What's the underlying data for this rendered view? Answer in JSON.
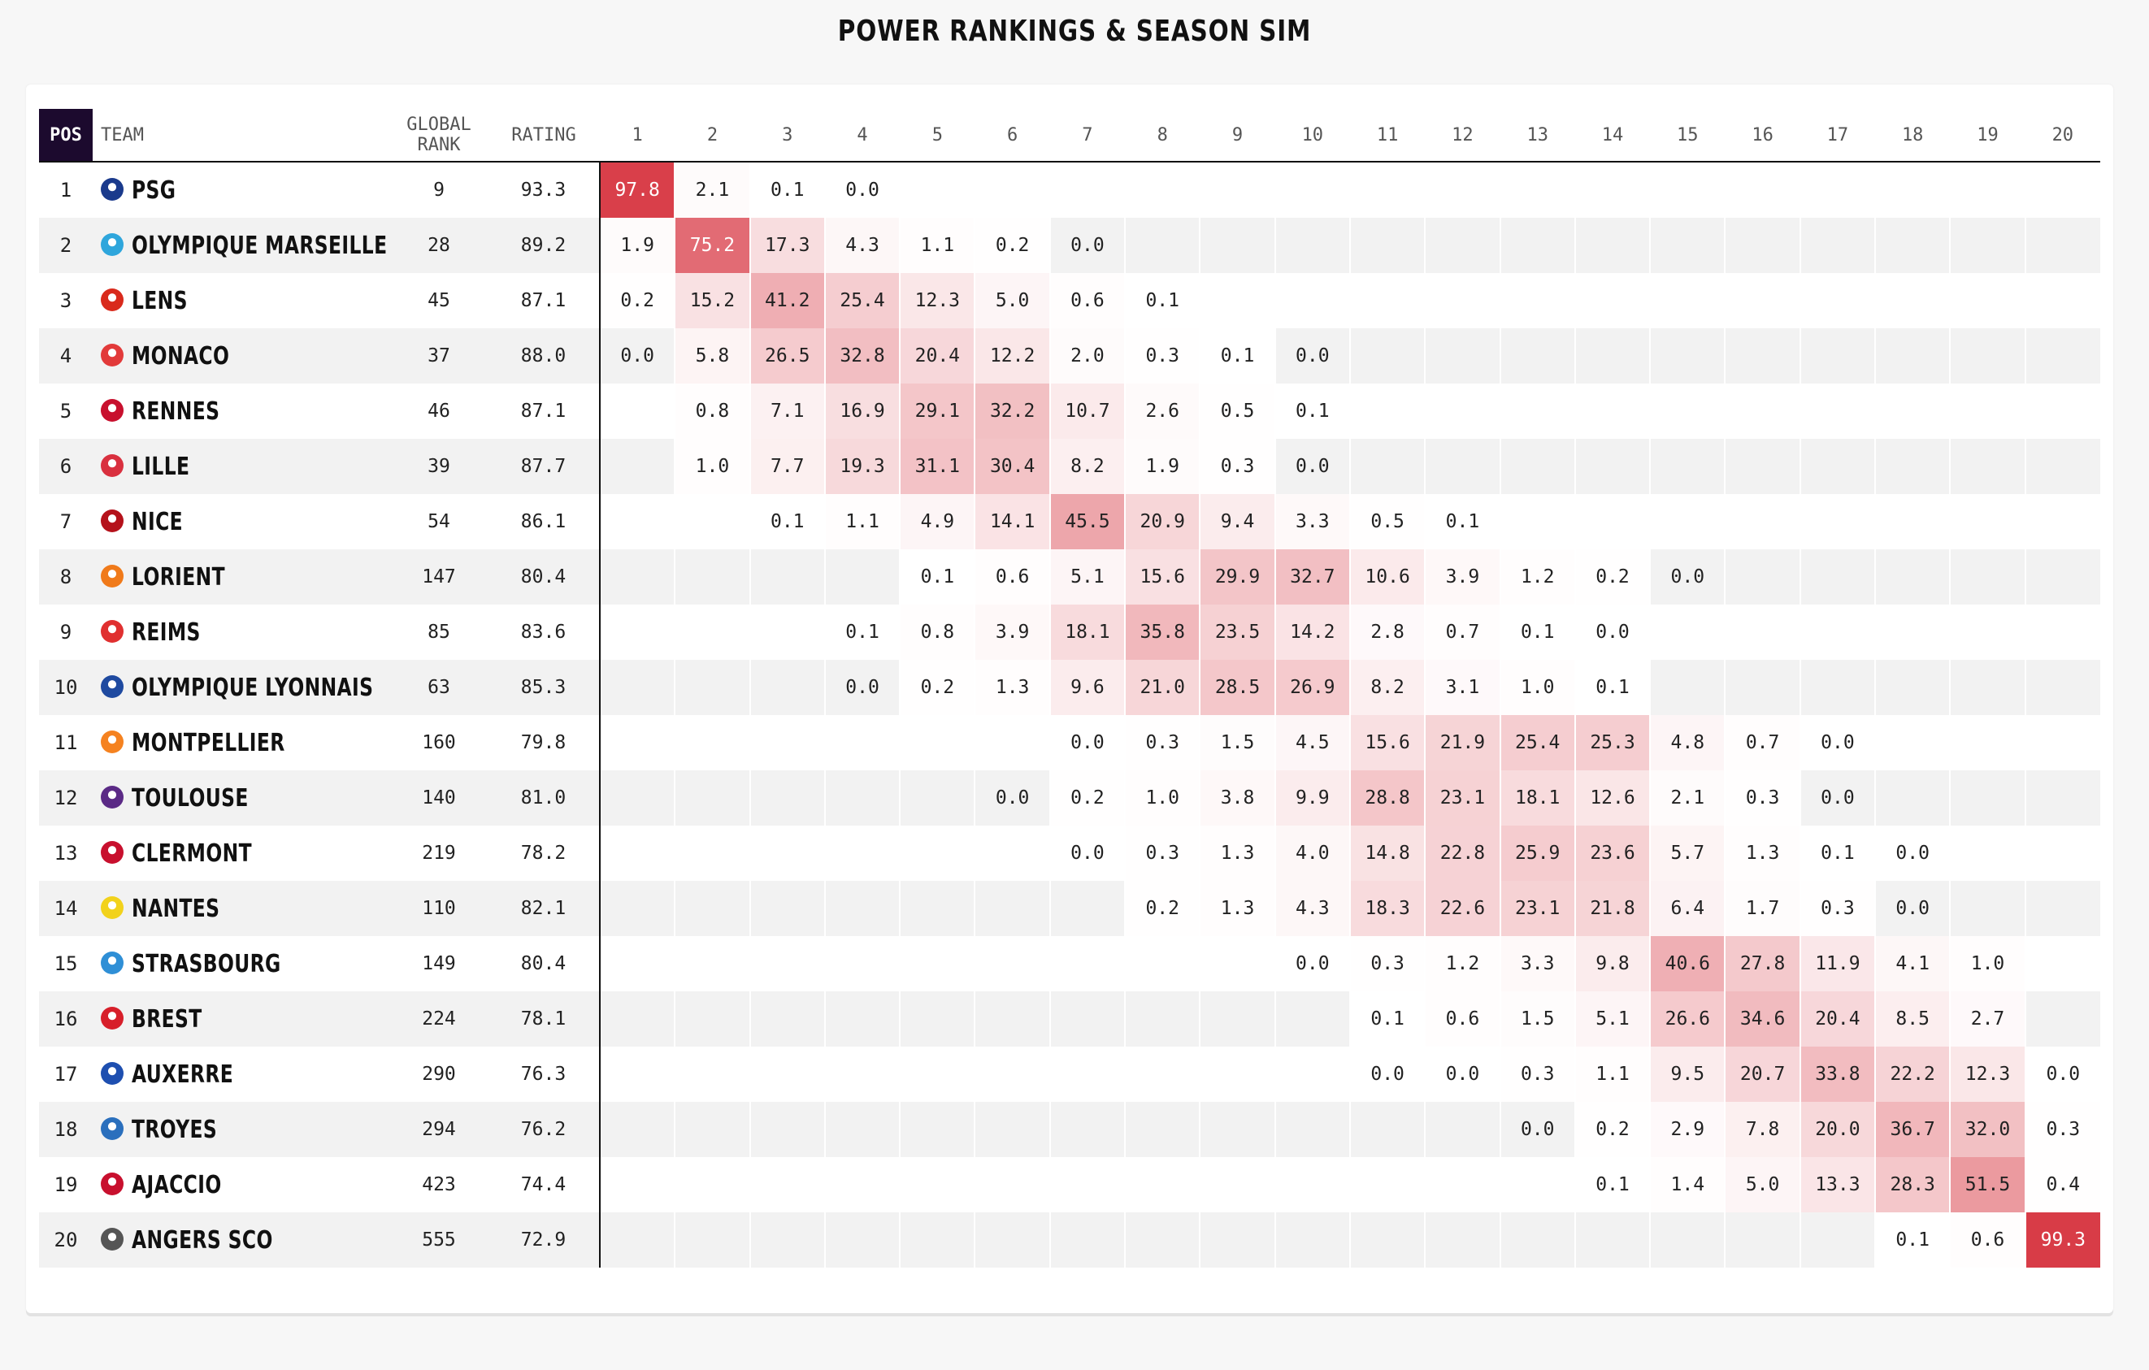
{
  "title": "POWER RANKINGS & SEASON SIM",
  "headers": {
    "pos": "POS",
    "team": "TEAM",
    "global_rank": "GLOBAL RANK",
    "rating": "RATING",
    "positions": [
      "1",
      "2",
      "3",
      "4",
      "5",
      "6",
      "7",
      "8",
      "9",
      "10",
      "11",
      "12",
      "13",
      "14",
      "15",
      "16",
      "17",
      "18",
      "19",
      "20"
    ]
  },
  "heat_color": "#d6303c",
  "teams": [
    {
      "pos": "1",
      "name": "PSG",
      "global_rank": "9",
      "rating": "93.3",
      "crest_icon": "psg-crest-icon",
      "crest_color": "#1a3a8c",
      "probs": [
        "97.8",
        "2.1",
        "0.1",
        "0.0",
        "",
        "",
        "",
        "",
        "",
        "",
        "",
        "",
        "",
        "",
        "",
        "",
        "",
        "",
        "",
        ""
      ]
    },
    {
      "pos": "2",
      "name": "OLYMPIQUE MARSEILLE",
      "global_rank": "28",
      "rating": "89.2",
      "crest_icon": "marseille-crest-icon",
      "crest_color": "#2fa6dc",
      "probs": [
        "1.9",
        "75.2",
        "17.3",
        "4.3",
        "1.1",
        "0.2",
        "0.0",
        "",
        "",
        "",
        "",
        "",
        "",
        "",
        "",
        "",
        "",
        "",
        "",
        ""
      ]
    },
    {
      "pos": "3",
      "name": "LENS",
      "global_rank": "45",
      "rating": "87.1",
      "crest_icon": "lens-crest-icon",
      "crest_color": "#d92a1c",
      "probs": [
        "0.2",
        "15.2",
        "41.2",
        "25.4",
        "12.3",
        "5.0",
        "0.6",
        "0.1",
        "",
        "",
        "",
        "",
        "",
        "",
        "",
        "",
        "",
        "",
        "",
        ""
      ]
    },
    {
      "pos": "4",
      "name": "MONACO",
      "global_rank": "37",
      "rating": "88.0",
      "crest_icon": "monaco-crest-icon",
      "crest_color": "#e23a3a",
      "probs": [
        "0.0",
        "5.8",
        "26.5",
        "32.8",
        "20.4",
        "12.2",
        "2.0",
        "0.3",
        "0.1",
        "0.0",
        "",
        "",
        "",
        "",
        "",
        "",
        "",
        "",
        "",
        ""
      ]
    },
    {
      "pos": "5",
      "name": "RENNES",
      "global_rank": "46",
      "rating": "87.1",
      "crest_icon": "rennes-crest-icon",
      "crest_color": "#c8102e",
      "probs": [
        "",
        "0.8",
        "7.1",
        "16.9",
        "29.1",
        "32.2",
        "10.7",
        "2.6",
        "0.5",
        "0.1",
        "",
        "",
        "",
        "",
        "",
        "",
        "",
        "",
        "",
        ""
      ]
    },
    {
      "pos": "6",
      "name": "LILLE",
      "global_rank": "39",
      "rating": "87.7",
      "crest_icon": "lille-crest-icon",
      "crest_color": "#d9303f",
      "probs": [
        "",
        "1.0",
        "7.7",
        "19.3",
        "31.1",
        "30.4",
        "8.2",
        "1.9",
        "0.3",
        "0.0",
        "",
        "",
        "",
        "",
        "",
        "",
        "",
        "",
        "",
        ""
      ]
    },
    {
      "pos": "7",
      "name": "NICE",
      "global_rank": "54",
      "rating": "86.1",
      "crest_icon": "nice-crest-icon",
      "crest_color": "#b5121b",
      "probs": [
        "",
        "",
        "0.1",
        "1.1",
        "4.9",
        "14.1",
        "45.5",
        "20.9",
        "9.4",
        "3.3",
        "0.5",
        "0.1",
        "",
        "",
        "",
        "",
        "",
        "",
        "",
        ""
      ]
    },
    {
      "pos": "8",
      "name": "LORIENT",
      "global_rank": "147",
      "rating": "80.4",
      "crest_icon": "lorient-crest-icon",
      "crest_color": "#f07a1a",
      "probs": [
        "",
        "",
        "",
        "",
        "0.1",
        "0.6",
        "5.1",
        "15.6",
        "29.9",
        "32.7",
        "10.6",
        "3.9",
        "1.2",
        "0.2",
        "0.0",
        "",
        "",
        "",
        "",
        ""
      ]
    },
    {
      "pos": "9",
      "name": "REIMS",
      "global_rank": "85",
      "rating": "83.6",
      "crest_icon": "reims-crest-icon",
      "crest_color": "#e03030",
      "probs": [
        "",
        "",
        "",
        "0.1",
        "0.8",
        "3.9",
        "18.1",
        "35.8",
        "23.5",
        "14.2",
        "2.8",
        "0.7",
        "0.1",
        "0.0",
        "",
        "",
        "",
        "",
        "",
        ""
      ]
    },
    {
      "pos": "10",
      "name": "OLYMPIQUE LYONNAIS",
      "global_rank": "63",
      "rating": "85.3",
      "crest_icon": "lyon-crest-icon",
      "crest_color": "#1f4aa0",
      "probs": [
        "",
        "",
        "",
        "0.0",
        "0.2",
        "1.3",
        "9.6",
        "21.0",
        "28.5",
        "26.9",
        "8.2",
        "3.1",
        "1.0",
        "0.1",
        "",
        "",
        "",
        "",
        "",
        ""
      ]
    },
    {
      "pos": "11",
      "name": "MONTPELLIER",
      "global_rank": "160",
      "rating": "79.8",
      "crest_icon": "montpellier-crest-icon",
      "crest_color": "#f58220",
      "probs": [
        "",
        "",
        "",
        "",
        "",
        "",
        "0.0",
        "0.3",
        "1.5",
        "4.5",
        "15.6",
        "21.9",
        "25.4",
        "25.3",
        "4.8",
        "0.7",
        "0.0",
        "",
        "",
        ""
      ]
    },
    {
      "pos": "12",
      "name": "TOULOUSE",
      "global_rank": "140",
      "rating": "81.0",
      "crest_icon": "toulouse-crest-icon",
      "crest_color": "#5b2a86",
      "probs": [
        "",
        "",
        "",
        "",
        "",
        "0.0",
        "0.2",
        "1.0",
        "3.8",
        "9.9",
        "28.8",
        "23.1",
        "18.1",
        "12.6",
        "2.1",
        "0.3",
        "0.0",
        "",
        "",
        ""
      ]
    },
    {
      "pos": "13",
      "name": "CLERMONT",
      "global_rank": "219",
      "rating": "78.2",
      "crest_icon": "clermont-crest-icon",
      "crest_color": "#c8102e",
      "probs": [
        "",
        "",
        "",
        "",
        "",
        "",
        "0.0",
        "0.3",
        "1.3",
        "4.0",
        "14.8",
        "22.8",
        "25.9",
        "23.6",
        "5.7",
        "1.3",
        "0.1",
        "0.0",
        "",
        ""
      ]
    },
    {
      "pos": "14",
      "name": "NANTES",
      "global_rank": "110",
      "rating": "82.1",
      "crest_icon": "nantes-crest-icon",
      "crest_color": "#f2d21c",
      "probs": [
        "",
        "",
        "",
        "",
        "",
        "",
        "",
        "0.2",
        "1.3",
        "4.3",
        "18.3",
        "22.6",
        "23.1",
        "21.8",
        "6.4",
        "1.7",
        "0.3",
        "0.0",
        "",
        ""
      ]
    },
    {
      "pos": "15",
      "name": "STRASBOURG",
      "global_rank": "149",
      "rating": "80.4",
      "crest_icon": "strasbourg-crest-icon",
      "crest_color": "#2f8fd6",
      "probs": [
        "",
        "",
        "",
        "",
        "",
        "",
        "",
        "",
        "",
        "0.0",
        "0.3",
        "1.2",
        "3.3",
        "9.8",
        "40.6",
        "27.8",
        "11.9",
        "4.1",
        "1.0",
        ""
      ]
    },
    {
      "pos": "16",
      "name": "BREST",
      "global_rank": "224",
      "rating": "78.1",
      "crest_icon": "brest-crest-icon",
      "crest_color": "#d71f2a",
      "probs": [
        "",
        "",
        "",
        "",
        "",
        "",
        "",
        "",
        "",
        "",
        "0.1",
        "0.6",
        "1.5",
        "5.1",
        "26.6",
        "34.6",
        "20.4",
        "8.5",
        "2.7",
        ""
      ]
    },
    {
      "pos": "17",
      "name": "AUXERRE",
      "global_rank": "290",
      "rating": "76.3",
      "crest_icon": "auxerre-crest-icon",
      "crest_color": "#1e4fb0",
      "probs": [
        "",
        "",
        "",
        "",
        "",
        "",
        "",
        "",
        "",
        "",
        "0.0",
        "0.0",
        "0.3",
        "1.1",
        "9.5",
        "20.7",
        "33.8",
        "22.2",
        "12.3",
        "0.0"
      ]
    },
    {
      "pos": "18",
      "name": "TROYES",
      "global_rank": "294",
      "rating": "76.2",
      "crest_icon": "troyes-crest-icon",
      "crest_color": "#2a6fbd",
      "probs": [
        "",
        "",
        "",
        "",
        "",
        "",
        "",
        "",
        "",
        "",
        "",
        "",
        "0.0",
        "0.2",
        "2.9",
        "7.8",
        "20.0",
        "36.7",
        "32.0",
        "0.3"
      ]
    },
    {
      "pos": "19",
      "name": "AJACCIO",
      "global_rank": "423",
      "rating": "74.4",
      "crest_icon": "ajaccio-crest-icon",
      "crest_color": "#c8102e",
      "probs": [
        "",
        "",
        "",
        "",
        "",
        "",
        "",
        "",
        "",
        "",
        "",
        "",
        "",
        "0.1",
        "1.4",
        "5.0",
        "13.3",
        "28.3",
        "51.5",
        "0.4"
      ]
    },
    {
      "pos": "20",
      "name": "ANGERS SCO",
      "global_rank": "555",
      "rating": "72.9",
      "crest_icon": "angers-crest-icon",
      "crest_color": "#555555",
      "probs": [
        "",
        "",
        "",
        "",
        "",
        "",
        "",
        "",
        "",
        "",
        "",
        "",
        "",
        "",
        "",
        "",
        "",
        "0.1",
        "0.6",
        "99.3"
      ]
    }
  ]
}
